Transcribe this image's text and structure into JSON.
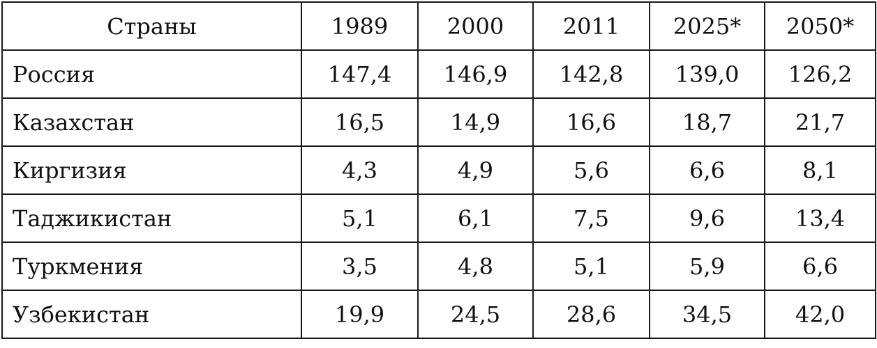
{
  "chart_data": {
    "type": "table",
    "corner_header": "Страны",
    "columns": [
      "1989",
      "2000",
      "2011",
      "2025*",
      "2050*"
    ],
    "rows": [
      {
        "label": "Россия",
        "values": [
          "147,4",
          "146,9",
          "142,8",
          "139,0",
          "126,2"
        ]
      },
      {
        "label": "Казахстан",
        "values": [
          "16,5",
          "14,9",
          "16,6",
          "18,7",
          "21,7"
        ]
      },
      {
        "label": "Киргизия",
        "values": [
          "4,3",
          "4,9",
          "5,6",
          "6,6",
          "8,1"
        ]
      },
      {
        "label": "Таджикистан",
        "values": [
          "5,1",
          "6,1",
          "7,5",
          "9,6",
          "13,4"
        ]
      },
      {
        "label": "Туркмения",
        "values": [
          "3,5",
          "4,8",
          "5,1",
          "5,9",
          "6,6"
        ]
      },
      {
        "label": "Узбекистан",
        "values": [
          "19,9",
          "24,5",
          "28,6",
          "34,5",
          "42,0"
        ]
      }
    ]
  }
}
